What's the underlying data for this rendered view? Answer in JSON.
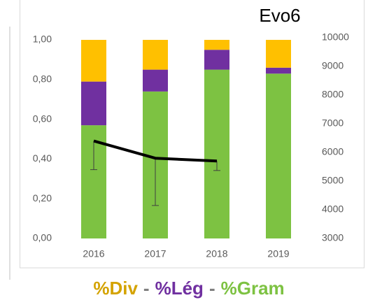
{
  "chart_data": {
    "type": "stacked-bar-line",
    "title": "Evo6",
    "categories": [
      "2016",
      "2017",
      "2018",
      "2019"
    ],
    "series": [
      {
        "name": "%Gram",
        "color": "#7dc242",
        "values": [
          0.57,
          0.74,
          0.85,
          0.83
        ]
      },
      {
        "name": "%Lég",
        "color": "#7030a0",
        "values": [
          0.22,
          0.11,
          0.1,
          0.03
        ]
      },
      {
        "name": "%Div",
        "color": "#ffc000",
        "values": [
          0.21,
          0.15,
          0.05,
          0.14
        ]
      }
    ],
    "line": {
      "axis": "y2",
      "color": "#000000",
      "values": [
        6400,
        5800,
        5700,
        null
      ],
      "errors": [
        1000,
        1650,
        330,
        null
      ]
    },
    "legend_separator": "-",
    "ylim": [
      0,
      1
    ],
    "yticks": [
      {
        "value": 0,
        "label": "0,00"
      },
      {
        "value": 0.2,
        "label": "0,20"
      },
      {
        "value": 0.4,
        "label": "0,40"
      },
      {
        "value": 0.6,
        "label": "0,60"
      },
      {
        "value": 0.8,
        "label": "0,80"
      },
      {
        "value": 1,
        "label": "1,00"
      }
    ],
    "y2lim": [
      3000,
      10000
    ],
    "y2ticks": [
      3000,
      4000,
      5000,
      6000,
      7000,
      8000,
      9000,
      10000
    ]
  }
}
